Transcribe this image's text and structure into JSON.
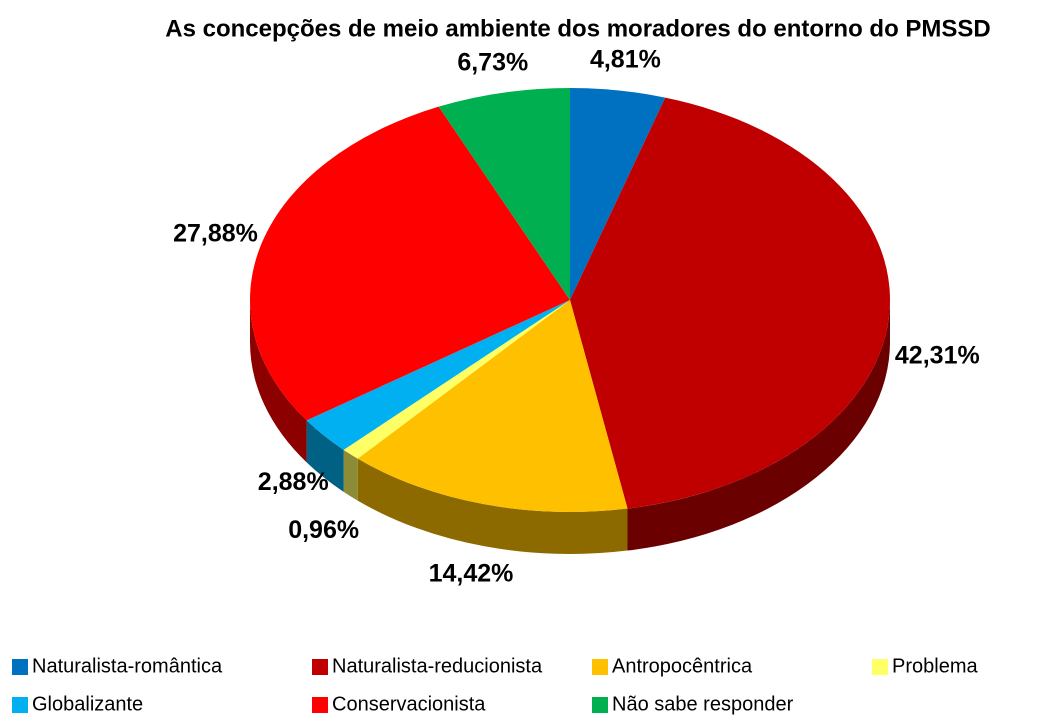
{
  "chart_data": {
    "type": "pie3d",
    "title": "As concepções de meio ambiente dos moradores do entorno do PMSSD",
    "categories": [
      "Naturalista-romântica",
      "Naturalista-reducionista",
      "Antropocêntrica",
      "Problema",
      "Globalizante",
      "Conservacionista",
      "Não sabe responder"
    ],
    "values": [
      4.81,
      42.31,
      14.42,
      0.96,
      2.88,
      27.88,
      6.73
    ],
    "value_labels": [
      "4,81%",
      "42,31%",
      "14,42%",
      "0,96%",
      "2,88%",
      "27,88%",
      "6,73%"
    ],
    "colors": [
      "#0070c0",
      "#c00000",
      "#ffc000",
      "#ffff66",
      "#00b0f0",
      "#ff0000",
      "#00b050"
    ],
    "legend": "bottom"
  }
}
